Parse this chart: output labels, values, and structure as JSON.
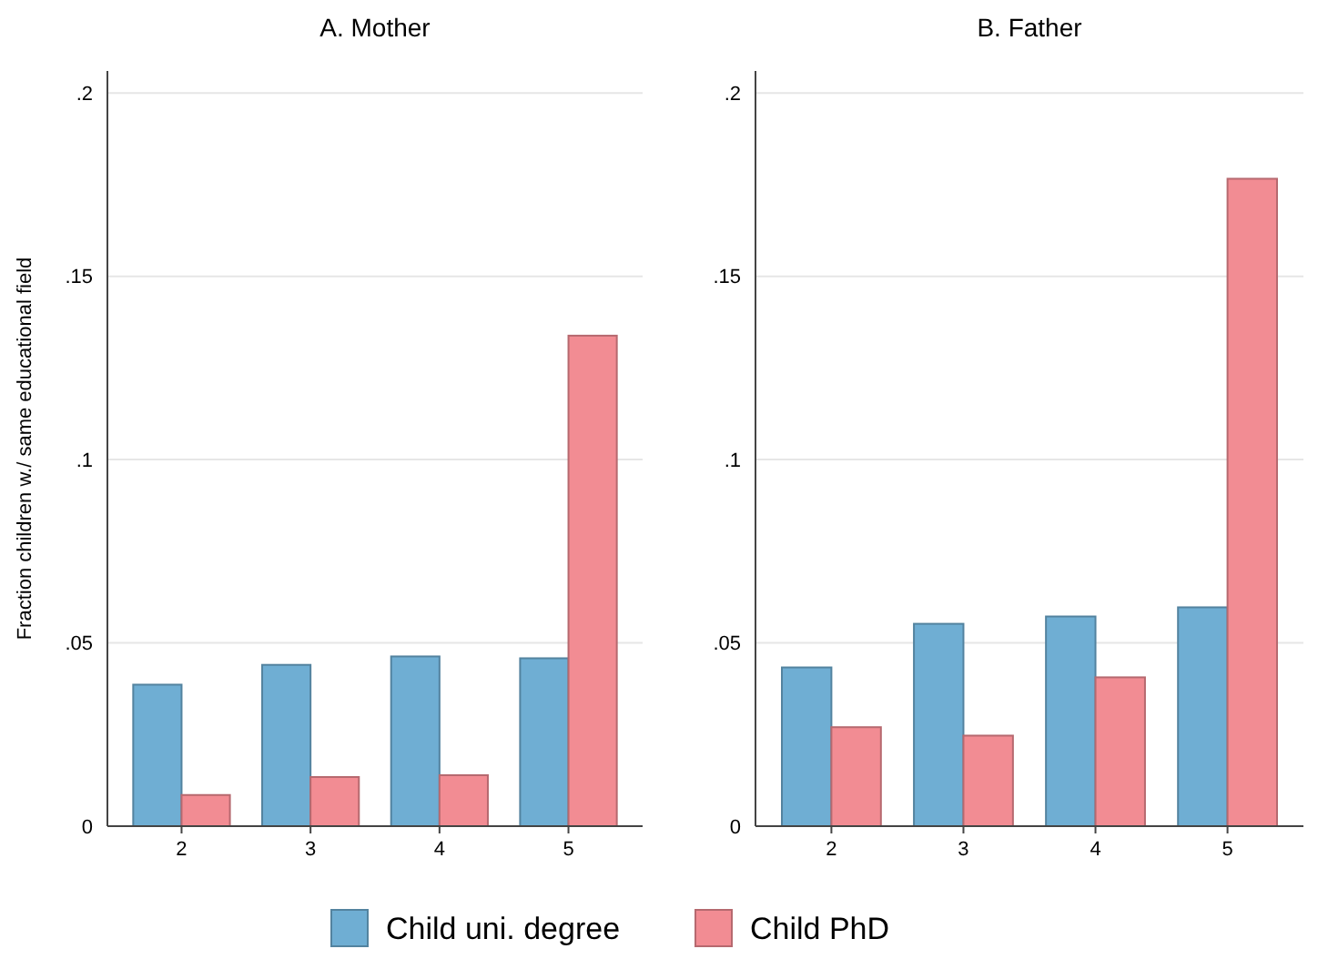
{
  "chart_data": [
    {
      "type": "bar",
      "title": "A. Mother",
      "ylabel": "Fraction children w./ same educational field",
      "categories": [
        "2",
        "3",
        "4",
        "5"
      ],
      "series": [
        {
          "name": "Child uni. degree",
          "color": "#6faed3",
          "values": [
            0.0386,
            0.044,
            0.0463,
            0.0458
          ]
        },
        {
          "name": "Child PhD",
          "color": "#f28c93",
          "values": [
            0.0085,
            0.0134,
            0.0139,
            0.1338
          ]
        }
      ],
      "ylim": [
        0,
        0.206
      ],
      "yticks": [
        0,
        {
          "value": 0.05,
          "label": ".05"
        },
        {
          "value": 0.1,
          "label": ".1"
        },
        {
          "value": 0.15,
          "label": ".15"
        },
        {
          "value": 0.2,
          "label": ".2"
        }
      ],
      "grid": "y",
      "legend": "bottom"
    },
    {
      "type": "bar",
      "title": "B. Father",
      "categories": [
        "2",
        "3",
        "4",
        "5"
      ],
      "series": [
        {
          "color": "#6faed3",
          "values": [
            0.0433,
            0.0552,
            0.0572,
            0.0597
          ]
        },
        {
          "color": "#f28c93",
          "values": [
            0.027,
            0.0247,
            0.0406,
            0.1766
          ]
        }
      ],
      "ylim": [
        0,
        0.206
      ],
      "yticks": [
        0,
        {
          "value": 0.05,
          "label": ".05"
        },
        {
          "value": 0.1,
          "label": ".1"
        },
        {
          "value": 0.15,
          "label": ".15"
        },
        {
          "value": 0.2,
          "label": ".2"
        }
      ],
      "grid": "y"
    }
  ]
}
